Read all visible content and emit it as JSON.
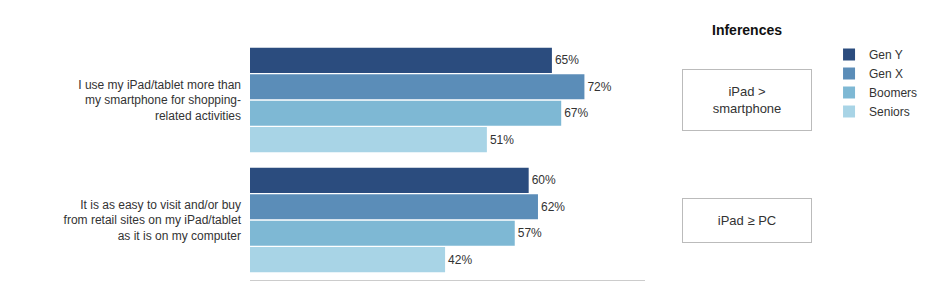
{
  "chart_data": {
    "type": "bar",
    "orientation": "horizontal",
    "categories": [
      "I use my iPad/tablet more than\nmy smartphone for shopping-\nrelated activities",
      "It is as easy to visit and/or buy\nfrom retail sites on my iPad/tablet\nas it is on my computer"
    ],
    "series": [
      {
        "name": "Gen Y",
        "color": "#2b4c7e",
        "values": [
          65,
          60
        ],
        "value_labels": [
          "65%",
          "60%"
        ]
      },
      {
        "name": "Gen X",
        "color": "#5b8db8",
        "values": [
          72,
          62
        ],
        "value_labels": [
          "72%",
          "62%"
        ]
      },
      {
        "name": "Boomers",
        "color": "#7eb8d4",
        "values": [
          67,
          57
        ],
        "value_labels": [
          "67%",
          "57%"
        ]
      },
      {
        "name": "Seniors",
        "color": "#a8d4e6",
        "values": [
          51,
          42
        ],
        "value_labels": [
          "51%",
          "42%"
        ]
      }
    ],
    "xlim": [
      0,
      85
    ],
    "xticks": [],
    "grid": false,
    "data_labels": true,
    "tick_labels": "y",
    "legend": "right",
    "annotations": [
      {
        "text": "Inferences"
      },
      {
        "text": "iPad >\nsmartphone",
        "category": "I use my iPad/tablet more than\nmy smartphone for shopping-\nrelated activities"
      },
      {
        "text": "iPad ≥ PC",
        "category": "It is as easy to visit and/or buy\nfrom retail sites on my iPad/tablet\nas it is on my computer"
      }
    ]
  }
}
